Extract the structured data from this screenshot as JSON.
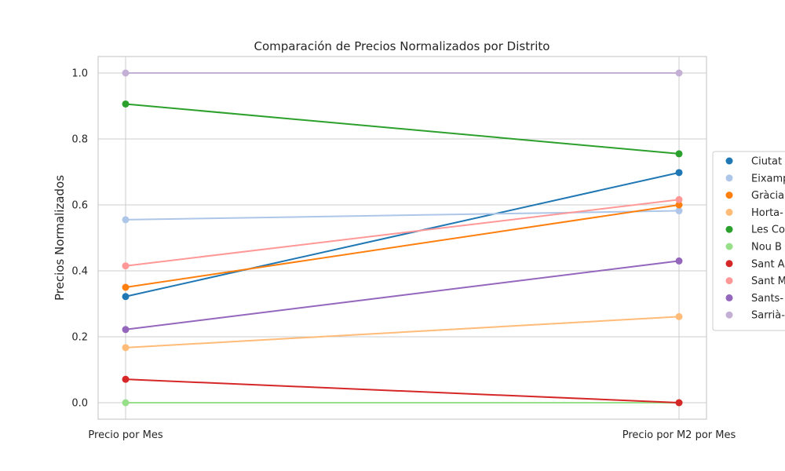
{
  "chart_data": {
    "type": "line",
    "title": "Comparación de Precios Normalizados por Distrito",
    "xlabel": "",
    "ylabel": "Precios Normalizados",
    "categories": [
      "Precio por Mes",
      "Precio por M2 por Mes"
    ],
    "ylim": [
      -0.05,
      1.05
    ],
    "yticks": [
      "0.0",
      "0.2",
      "0.4",
      "0.6",
      "0.8",
      "1.0"
    ],
    "grid": true,
    "legend_position": "right",
    "series": [
      {
        "name": "Ciutat",
        "color": "#1f77b4",
        "values": [
          0.322,
          0.698
        ]
      },
      {
        "name": "Eixamp",
        "color": "#aec7e8",
        "values": [
          0.555,
          0.582
        ]
      },
      {
        "name": "Gràcia",
        "color": "#ff7f0e",
        "values": [
          0.35,
          0.6
        ]
      },
      {
        "name": "Horta-",
        "color": "#ffbb78",
        "values": [
          0.167,
          0.261
        ]
      },
      {
        "name": "Les Co",
        "color": "#2ca02c",
        "values": [
          0.906,
          0.755
        ]
      },
      {
        "name": "Nou B",
        "color": "#98df8a",
        "values": [
          0.0,
          0.0
        ]
      },
      {
        "name": "Sant A",
        "color": "#d62728",
        "values": [
          0.071,
          0.0
        ]
      },
      {
        "name": "Sant M",
        "color": "#ff9896",
        "values": [
          0.415,
          0.616
        ]
      },
      {
        "name": "Sants-",
        "color": "#9467bd",
        "values": [
          0.222,
          0.43
        ]
      },
      {
        "name": "Sarrià-",
        "color": "#c5b0d5",
        "values": [
          1.0,
          1.0
        ]
      }
    ]
  }
}
